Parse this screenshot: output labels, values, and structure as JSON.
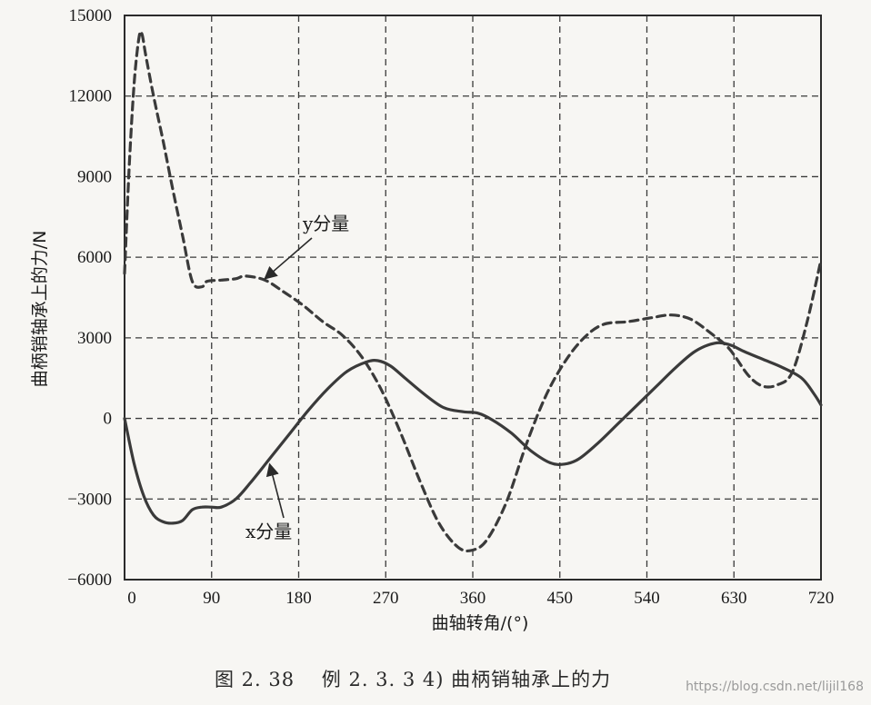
{
  "chart_data": {
    "type": "line",
    "xlabel": "曲轴转角/(°)",
    "ylabel": "曲柄销轴承上的力/N",
    "xlim": [
      0,
      720
    ],
    "ylim": [
      -6000,
      15000
    ],
    "x_ticks": [
      0,
      90,
      180,
      270,
      360,
      450,
      540,
      630,
      720
    ],
    "y_ticks": [
      15000,
      12000,
      9000,
      6000,
      3000,
      0,
      -3000,
      -6000
    ],
    "grid": true,
    "legend": "none",
    "series": [
      {
        "name": "x分量",
        "style": "solid",
        "color": "#3a3a3a",
        "points": [
          [
            0,
            0
          ],
          [
            10,
            -1700
          ],
          [
            20,
            -2900
          ],
          [
            30,
            -3600
          ],
          [
            40,
            -3850
          ],
          [
            50,
            -3900
          ],
          [
            60,
            -3800
          ],
          [
            70,
            -3400
          ],
          [
            80,
            -3300
          ],
          [
            90,
            -3300
          ],
          [
            100,
            -3300
          ],
          [
            115,
            -3000
          ],
          [
            130,
            -2400
          ],
          [
            150,
            -1500
          ],
          [
            170,
            -600
          ],
          [
            190,
            300
          ],
          [
            210,
            1100
          ],
          [
            230,
            1750
          ],
          [
            250,
            2100
          ],
          [
            262,
            2150
          ],
          [
            275,
            1950
          ],
          [
            290,
            1500
          ],
          [
            310,
            900
          ],
          [
            330,
            400
          ],
          [
            350,
            250
          ],
          [
            365,
            200
          ],
          [
            380,
            -50
          ],
          [
            400,
            -550
          ],
          [
            420,
            -1200
          ],
          [
            440,
            -1650
          ],
          [
            455,
            -1700
          ],
          [
            470,
            -1500
          ],
          [
            490,
            -900
          ],
          [
            510,
            -200
          ],
          [
            530,
            500
          ],
          [
            550,
            1200
          ],
          [
            570,
            1900
          ],
          [
            590,
            2500
          ],
          [
            610,
            2800
          ],
          [
            625,
            2750
          ],
          [
            640,
            2500
          ],
          [
            660,
            2200
          ],
          [
            680,
            1900
          ],
          [
            700,
            1500
          ],
          [
            713,
            900
          ],
          [
            720,
            500
          ]
        ]
      },
      {
        "name": "y分量",
        "style": "dashed",
        "color": "#3a3a3a",
        "points": [
          [
            0,
            5400
          ],
          [
            5,
            9500
          ],
          [
            10,
            12500
          ],
          [
            15,
            14200
          ],
          [
            18,
            14300
          ],
          [
            22,
            13500
          ],
          [
            30,
            12000
          ],
          [
            40,
            10300
          ],
          [
            50,
            8500
          ],
          [
            60,
            6800
          ],
          [
            70,
            5100
          ],
          [
            80,
            4900
          ],
          [
            85,
            5100
          ],
          [
            100,
            5150
          ],
          [
            115,
            5200
          ],
          [
            125,
            5300
          ],
          [
            145,
            5150
          ],
          [
            165,
            4700
          ],
          [
            185,
            4200
          ],
          [
            205,
            3600
          ],
          [
            225,
            3100
          ],
          [
            245,
            2300
          ],
          [
            265,
            1100
          ],
          [
            285,
            -500
          ],
          [
            305,
            -2300
          ],
          [
            325,
            -3900
          ],
          [
            345,
            -4800
          ],
          [
            360,
            -4900
          ],
          [
            375,
            -4500
          ],
          [
            395,
            -3100
          ],
          [
            415,
            -1000
          ],
          [
            435,
            800
          ],
          [
            455,
            2100
          ],
          [
            475,
            3000
          ],
          [
            495,
            3500
          ],
          [
            520,
            3600
          ],
          [
            545,
            3750
          ],
          [
            565,
            3850
          ],
          [
            585,
            3700
          ],
          [
            605,
            3200
          ],
          [
            625,
            2600
          ],
          [
            645,
            1600
          ],
          [
            660,
            1200
          ],
          [
            675,
            1250
          ],
          [
            690,
            1700
          ],
          [
            705,
            3500
          ],
          [
            720,
            5900
          ]
        ]
      }
    ],
    "annotations": [
      {
        "text": "y分量",
        "target": [
          145,
          5200
        ]
      },
      {
        "text": "x分量",
        "target": [
          150,
          -1700
        ]
      }
    ]
  },
  "caption": "图 2. 38　 例 2. 3. 3 4)  曲柄销轴承上的力",
  "watermark": "https://blog.csdn.net/lijil168"
}
